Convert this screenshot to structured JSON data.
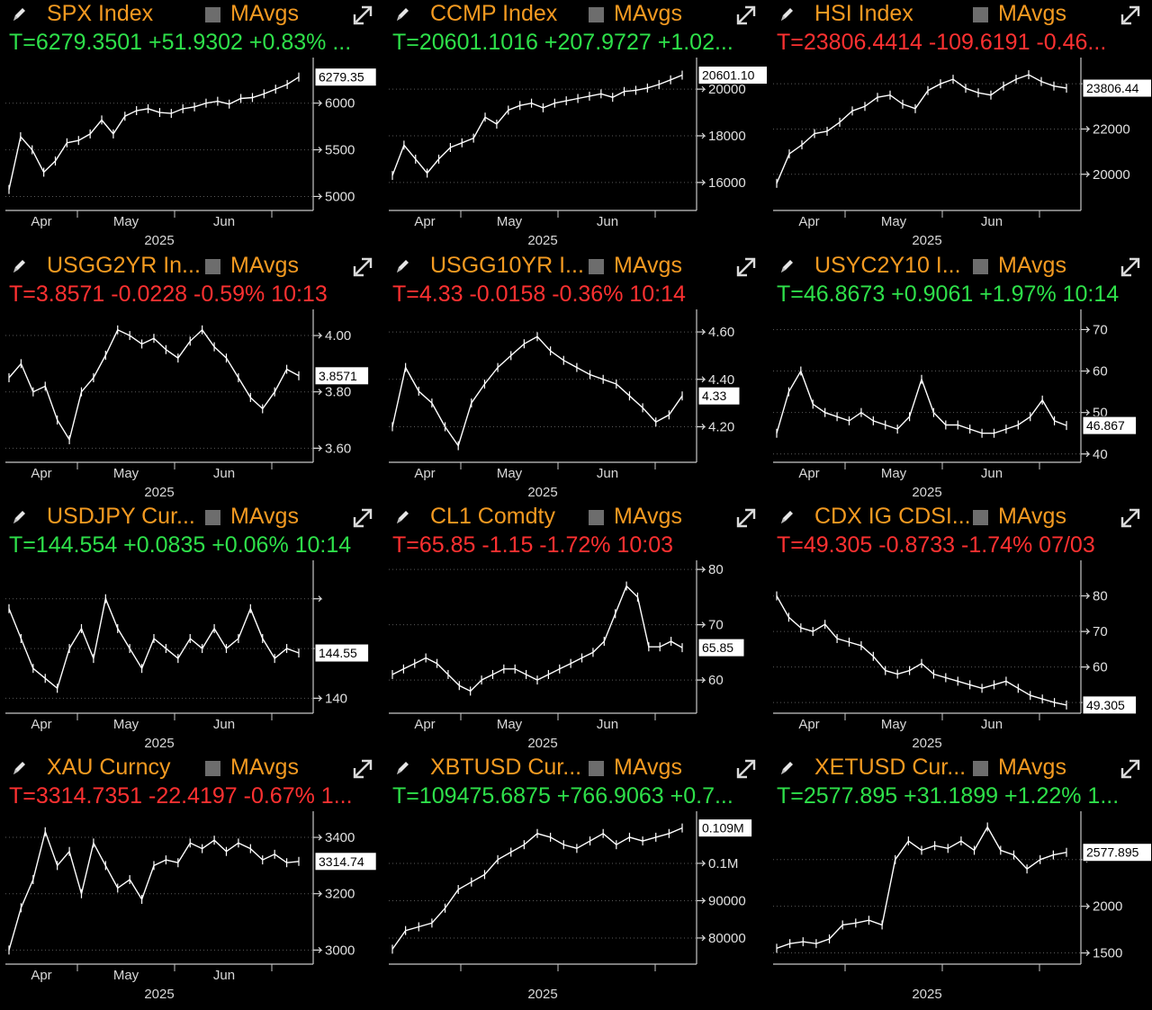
{
  "colors": {
    "background": "#000000",
    "title": "#f39a21",
    "up": "#2ee04a",
    "down": "#ff3131",
    "line": "#ffffff"
  },
  "icons": {
    "edit": "pencil-icon",
    "maToggle": "checkbox-icon",
    "expand": "expand-icon"
  },
  "panels": [
    {
      "title": "SPX Index",
      "ma": "MAvgs",
      "ticker": "T=6279.3501 +51.9302 +0.83% ...",
      "dir": "up",
      "chart_data": {
        "type": "line",
        "xTicks": [
          "Apr",
          "May",
          "Jun"
        ],
        "year": "2025",
        "ylim": [
          4850,
          6450
        ],
        "yTicks": [
          {
            "v": 5000,
            "label": "5000"
          },
          {
            "v": 5500,
            "label": "5500"
          },
          {
            "v": 6000,
            "label": "6000"
          }
        ],
        "last": {
          "v": 6279.35,
          "label": "6279.35"
        },
        "values": [
          5075,
          5640,
          5500,
          5260,
          5380,
          5575,
          5600,
          5670,
          5820,
          5670,
          5860,
          5920,
          5940,
          5900,
          5890,
          5940,
          5960,
          6000,
          6020,
          5990,
          6050,
          6060,
          6100,
          6150,
          6200,
          6279.35
        ]
      }
    },
    {
      "title": "CCMP Index",
      "ma": "MAvgs",
      "ticker": "T=20601.1016 +207.9727 +1.02...",
      "dir": "up",
      "chart_data": {
        "type": "line",
        "xTicks": [
          "Apr",
          "May",
          "Jun"
        ],
        "year": "2025",
        "ylim": [
          14800,
          21200
        ],
        "yTicks": [
          {
            "v": 16000,
            "label": "16000"
          },
          {
            "v": 18000,
            "label": "18000"
          },
          {
            "v": 20000,
            "label": "20000"
          }
        ],
        "last": {
          "v": 20601.1,
          "label": "20601.10"
        },
        "values": [
          16300,
          17600,
          17000,
          16400,
          17000,
          17500,
          17700,
          17900,
          18800,
          18500,
          19100,
          19300,
          19400,
          19200,
          19400,
          19500,
          19600,
          19700,
          19800,
          19650,
          19900,
          19950,
          20050,
          20200,
          20400,
          20601.1
        ]
      }
    },
    {
      "title": "HSI Index",
      "ma": "MAvgs",
      "ticker": "T=23806.4414 -109.6191 -0.46...",
      "dir": "down",
      "chart_data": {
        "type": "line",
        "xTicks": [
          "Apr",
          "May",
          "Jun"
        ],
        "year": "2025",
        "ylim": [
          18400,
          25000
        ],
        "yTicks": [
          {
            "v": 20000,
            "label": "20000"
          },
          {
            "v": 22000,
            "label": "22000"
          },
          {
            "v": 24000,
            "label": ""
          }
        ],
        "last": {
          "v": 23806.44,
          "label": "23806.44"
        },
        "values": [
          19600,
          20900,
          21300,
          21800,
          21900,
          22300,
          22800,
          23000,
          23400,
          23500,
          23100,
          22900,
          23700,
          24000,
          24200,
          23800,
          23600,
          23500,
          23900,
          24200,
          24400,
          24100,
          23900,
          23806.44
        ]
      }
    },
    {
      "title": "USGG2YR In...",
      "ma": "MAvgs",
      "ticker": "T=3.8571 -0.0228 -0.59% 10:13",
      "dir": "down",
      "chart_data": {
        "type": "line",
        "xTicks": [
          "Apr",
          "May",
          "Jun"
        ],
        "year": "2025",
        "ylim": [
          3.55,
          4.08
        ],
        "yTicks": [
          {
            "v": 3.6,
            "label": "3.60"
          },
          {
            "v": 3.8,
            "label": "3.80"
          },
          {
            "v": 4.0,
            "label": "4.00"
          }
        ],
        "last": {
          "v": 3.8571,
          "label": "3.8571"
        },
        "values": [
          3.85,
          3.9,
          3.8,
          3.82,
          3.7,
          3.63,
          3.8,
          3.85,
          3.93,
          4.02,
          4.0,
          3.97,
          3.99,
          3.95,
          3.92,
          3.98,
          4.02,
          3.96,
          3.92,
          3.85,
          3.78,
          3.74,
          3.8,
          3.88,
          3.8571
        ]
      }
    },
    {
      "title": "USGG10YR I...",
      "ma": "MAvgs",
      "ticker": "T=4.33 -0.0158 -0.36% 10:14",
      "dir": "down",
      "chart_data": {
        "type": "line",
        "xTicks": [
          "Apr",
          "May",
          "Jun"
        ],
        "year": "2025",
        "ylim": [
          4.05,
          4.68
        ],
        "yTicks": [
          {
            "v": 4.2,
            "label": "4.20"
          },
          {
            "v": 4.4,
            "label": "4.40"
          },
          {
            "v": 4.6,
            "label": "4.60"
          }
        ],
        "last": {
          "v": 4.33,
          "label": "4.33"
        },
        "values": [
          4.2,
          4.45,
          4.35,
          4.3,
          4.2,
          4.12,
          4.3,
          4.38,
          4.45,
          4.5,
          4.55,
          4.58,
          4.52,
          4.48,
          4.45,
          4.42,
          4.4,
          4.38,
          4.33,
          4.28,
          4.22,
          4.25,
          4.33
        ]
      }
    },
    {
      "title": "USYC2Y10 I...",
      "ma": "MAvgs",
      "ticker": "T=46.8673 +0.9061 +1.97% 10:14",
      "dir": "up",
      "chart_data": {
        "type": "line",
        "xTicks": [
          "Apr",
          "May",
          "Jun"
        ],
        "year": "2025",
        "ylim": [
          38,
          74
        ],
        "yTicks": [
          {
            "v": 40,
            "label": "40"
          },
          {
            "v": 50,
            "label": "50"
          },
          {
            "v": 60,
            "label": "60"
          },
          {
            "v": 70,
            "label": "70"
          }
        ],
        "last": {
          "v": 46.867,
          "label": "46.867"
        },
        "values": [
          45,
          55,
          60,
          52,
          50,
          49,
          48,
          50,
          48,
          47,
          46,
          49,
          58,
          50,
          47,
          47,
          46,
          45,
          45,
          46,
          47,
          49,
          53,
          48,
          46.867
        ]
      }
    },
    {
      "title": "USDJPY Cur...",
      "ma": "MAvgs",
      "ticker": "T=144.554 +0.0835 +0.06% 10:14",
      "dir": "up",
      "chart_data": {
        "type": "line",
        "xTicks": [
          "Apr",
          "May",
          "Jun"
        ],
        "year": "2025",
        "ylim": [
          138.5,
          153.5
        ],
        "yTicks": [
          {
            "v": 140,
            "label": "140"
          },
          {
            "v": 145,
            "label": ""
          },
          {
            "v": 150,
            "label": ""
          }
        ],
        "last": {
          "v": 144.55,
          "label": "144.55"
        },
        "values": [
          149,
          146,
          143,
          142,
          141,
          145,
          147,
          144,
          150,
          147,
          145,
          143,
          146,
          145,
          144,
          146,
          145,
          147,
          145,
          146,
          149,
          146,
          144,
          145,
          144.55
        ]
      }
    },
    {
      "title": "CL1 Comdty",
      "ma": "MAvgs",
      "ticker": "T=65.85 -1.15 -1.72% 10:03",
      "dir": "down",
      "chart_data": {
        "type": "line",
        "xTicks": [
          "Apr",
          "May",
          "Jun"
        ],
        "year": "2025",
        "ylim": [
          54,
          81
        ],
        "yTicks": [
          {
            "v": 60,
            "label": "60"
          },
          {
            "v": 70,
            "label": "70"
          },
          {
            "v": 80,
            "label": "80"
          }
        ],
        "last": {
          "v": 65.85,
          "label": "65.85"
        },
        "values": [
          61,
          62,
          63,
          64,
          63,
          61,
          59,
          58,
          60,
          61,
          62,
          62,
          61,
          60,
          61,
          62,
          63,
          64,
          65,
          67,
          72,
          77,
          75,
          66,
          66,
          67,
          65.85
        ]
      }
    },
    {
      "title": "CDX IG CDSI...",
      "ma": "MAvgs",
      "ticker": "T=49.305 -0.8733 -1.74% 07/03",
      "dir": "down",
      "chart_data": {
        "type": "line",
        "xTicks": [
          "Apr",
          "May",
          "Jun"
        ],
        "year": "2025",
        "ylim": [
          47,
          89
        ],
        "yTicks": [
          {
            "v": 50,
            "label": ""
          },
          {
            "v": 60,
            "label": "60"
          },
          {
            "v": 70,
            "label": "70"
          },
          {
            "v": 80,
            "label": "80"
          }
        ],
        "last": {
          "v": 49.305,
          "label": "49.305"
        },
        "values": [
          80,
          74,
          71,
          70,
          72,
          68,
          67,
          66,
          63,
          59,
          58,
          59,
          61,
          58,
          57,
          56,
          55,
          54,
          55,
          56,
          54,
          52,
          51,
          50,
          49.305
        ]
      }
    },
    {
      "title": "XAU Curncy",
      "ma": "MAvgs",
      "ticker": "T=3314.7351 -22.4197 -0.67% 1...",
      "dir": "down",
      "chart_data": {
        "type": "line",
        "xTicks": [
          "Apr",
          "May",
          "Jun"
        ],
        "year": "2025",
        "ylim": [
          2950,
          3480
        ],
        "yTicks": [
          {
            "v": 3000,
            "label": "3000"
          },
          {
            "v": 3200,
            "label": "3200"
          },
          {
            "v": 3400,
            "label": "3400"
          }
        ],
        "last": {
          "v": 3314.74,
          "label": "3314.74"
        },
        "values": [
          3000,
          3150,
          3250,
          3420,
          3300,
          3350,
          3200,
          3380,
          3300,
          3220,
          3250,
          3180,
          3300,
          3320,
          3310,
          3380,
          3360,
          3390,
          3350,
          3380,
          3360,
          3320,
          3340,
          3310,
          3314.74
        ]
      }
    },
    {
      "title": "XBTUSD Cur...",
      "ma": "MAvgs",
      "ticker": "T=109475.6875 +766.9063 +0.7...",
      "dir": "up",
      "chart_data": {
        "type": "line",
        "xTicks": [],
        "year": "2025",
        "ylim": [
          73000,
          113000
        ],
        "yTicks": [
          {
            "v": 80000,
            "label": "80000"
          },
          {
            "v": 90000,
            "label": "90000"
          },
          {
            "v": 100000,
            "label": "0.1M"
          }
        ],
        "last": {
          "v": 109475.69,
          "label": "0.109M"
        },
        "values": [
          77000,
          82000,
          83000,
          84000,
          88000,
          93000,
          95000,
          97000,
          101000,
          103000,
          105000,
          108000,
          107000,
          105000,
          104000,
          106000,
          108000,
          105000,
          107000,
          106000,
          107000,
          108000,
          109475.69
        ]
      }
    },
    {
      "title": "XETUSD Cur...",
      "ma": "MAvgs",
      "ticker": "T=2577.895 +31.1899 +1.22% 1...",
      "dir": "up",
      "chart_data": {
        "type": "line",
        "xTicks": [],
        "year": "2025",
        "ylim": [
          1380,
          2980
        ],
        "yTicks": [
          {
            "v": 1500,
            "label": "1500"
          },
          {
            "v": 2000,
            "label": "2000"
          },
          {
            "v": 2500,
            "label": ""
          }
        ],
        "last": {
          "v": 2577.895,
          "label": "2577.895"
        },
        "values": [
          1550,
          1600,
          1620,
          1600,
          1650,
          1800,
          1820,
          1850,
          1800,
          2500,
          2700,
          2600,
          2650,
          2620,
          2700,
          2600,
          2850,
          2600,
          2550,
          2400,
          2500,
          2550,
          2577.895
        ]
      }
    }
  ]
}
